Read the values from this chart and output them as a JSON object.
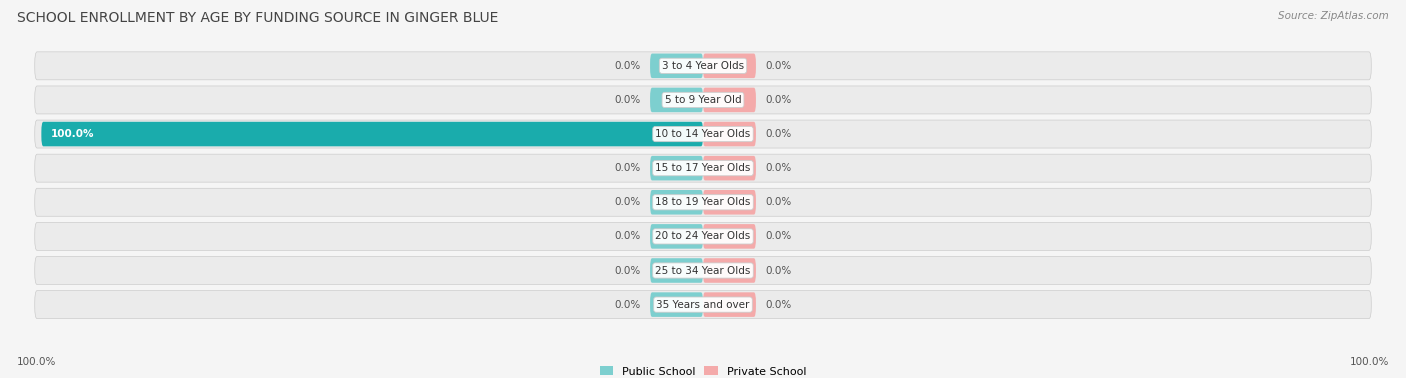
{
  "title": "SCHOOL ENROLLMENT BY AGE BY FUNDING SOURCE IN GINGER BLUE",
  "source": "Source: ZipAtlas.com",
  "categories": [
    "3 to 4 Year Olds",
    "5 to 9 Year Old",
    "10 to 14 Year Olds",
    "15 to 17 Year Olds",
    "18 to 19 Year Olds",
    "20 to 24 Year Olds",
    "25 to 34 Year Olds",
    "35 Years and over"
  ],
  "public_values": [
    0.0,
    0.0,
    100.0,
    0.0,
    0.0,
    0.0,
    0.0,
    0.0
  ],
  "private_values": [
    0.0,
    0.0,
    0.0,
    0.0,
    0.0,
    0.0,
    0.0,
    0.0
  ],
  "public_color_zero": "#7DCFCF",
  "public_color_full": "#1AACAC",
  "private_color": "#F4AAAA",
  "row_bg": "#eeeeee",
  "background_color": "#f5f5f5",
  "title_fontsize": 10,
  "label_fontsize": 7.5,
  "bottom_left_label": "100.0%",
  "bottom_right_label": "100.0%",
  "legend_public": "Public School",
  "legend_private": "Private School",
  "xlim_left": -100,
  "xlim_right": 100,
  "stub_size": 8
}
